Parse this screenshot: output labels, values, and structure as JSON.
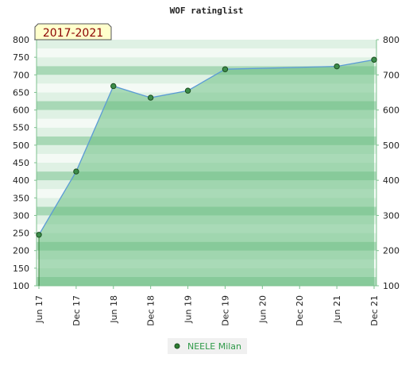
{
  "chart_data": {
    "type": "area",
    "title": "WOF ratinglist",
    "period_label": "2017-2021",
    "categories": [
      "Jun 17",
      "Dec 17",
      "Jun 18",
      "Dec 18",
      "Jun 19",
      "Dec 19",
      "Jun 20",
      "Dec 20",
      "Jun 21",
      "Dec 21"
    ],
    "x_index": [
      0,
      1,
      2,
      3,
      4,
      5,
      6,
      7,
      8,
      9
    ],
    "series": [
      {
        "name": "NEELE Milan",
        "points": [
          {
            "x": 0,
            "y": 245
          },
          {
            "x": 1,
            "y": 425
          },
          {
            "x": 2,
            "y": 668
          },
          {
            "x": 3,
            "y": 635
          },
          {
            "x": 4,
            "y": 655
          },
          {
            "x": 5,
            "y": 716
          },
          {
            "x": 8,
            "y": 724
          },
          {
            "x": 9,
            "y": 743
          }
        ]
      }
    ],
    "ylim": [
      100,
      800
    ],
    "y_ticks_left": [
      "100",
      "150",
      "200",
      "250",
      "300",
      "350",
      "400",
      "450",
      "500",
      "550",
      "600",
      "650",
      "700",
      "750",
      "800"
    ],
    "y_ticks_right": [
      "100",
      "200",
      "300",
      "400",
      "500",
      "600",
      "700",
      "800"
    ],
    "y_ticks_left_values": [
      100,
      150,
      200,
      250,
      300,
      350,
      400,
      450,
      500,
      550,
      600,
      650,
      700,
      750,
      800
    ],
    "y_ticks_right_values": [
      100,
      200,
      300,
      400,
      500,
      600,
      700,
      800
    ],
    "legend_placement": "bottom-center",
    "colors": {
      "line": "#5b9bd5",
      "area": "#6cbf83",
      "marker": "#2e7d32",
      "band_dark": "#a8d8b6",
      "band_light": "#dff1e4",
      "band_white": "#f4faf5",
      "label_box_bg": "#ffffcc",
      "label_text": "#8b0000"
    }
  }
}
